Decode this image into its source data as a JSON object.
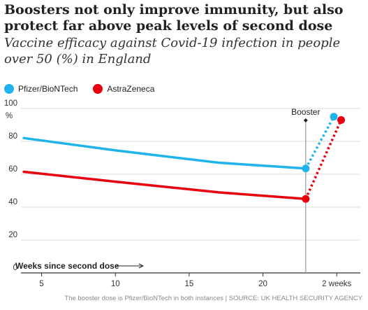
{
  "chart_data": {
    "type": "line",
    "title": "Boosters not only improve immunity, but also protect far above peak levels of second dose",
    "subtitle": "Vaccine efficacy against Covid-19 infection in people over 50 (%) in England",
    "ylabel": "%",
    "xlabel": "Weeks since second dose",
    "ylim": [
      0,
      100
    ],
    "yticks": [
      0,
      20,
      40,
      60,
      80,
      100
    ],
    "xlim": [
      3.6,
      26.6
    ],
    "xticks": [
      {
        "value": 5,
        "label": "5"
      },
      {
        "value": 10,
        "label": "10"
      },
      {
        "value": 15,
        "label": "15"
      },
      {
        "value": 20,
        "label": "20"
      },
      {
        "value": 25,
        "label": "2 weeks"
      }
    ],
    "booster_x": 22.9,
    "booster_label": "Booster",
    "series": [
      {
        "name": "Pfizer/BioNTech",
        "color": "#1fb4ea",
        "x": [
          3.8,
          10,
          17,
          22.9
        ],
        "values": [
          82,
          74.5,
          67,
          63.5
        ],
        "booster_point": {
          "x": 24.8,
          "y": 95
        }
      },
      {
        "name": "AstraZeneca",
        "color": "#e8000f",
        "x": [
          3.8,
          10,
          17,
          22.9
        ],
        "values": [
          61.5,
          55.5,
          49,
          45
        ],
        "booster_point": {
          "x": 25.3,
          "y": 93
        }
      }
    ],
    "grid": true,
    "legend": "top-left"
  },
  "footer": "The booster dose is Pfizer/BioNTech in both instances | SOURCE: UK HEALTH SECURITY AGENCY"
}
